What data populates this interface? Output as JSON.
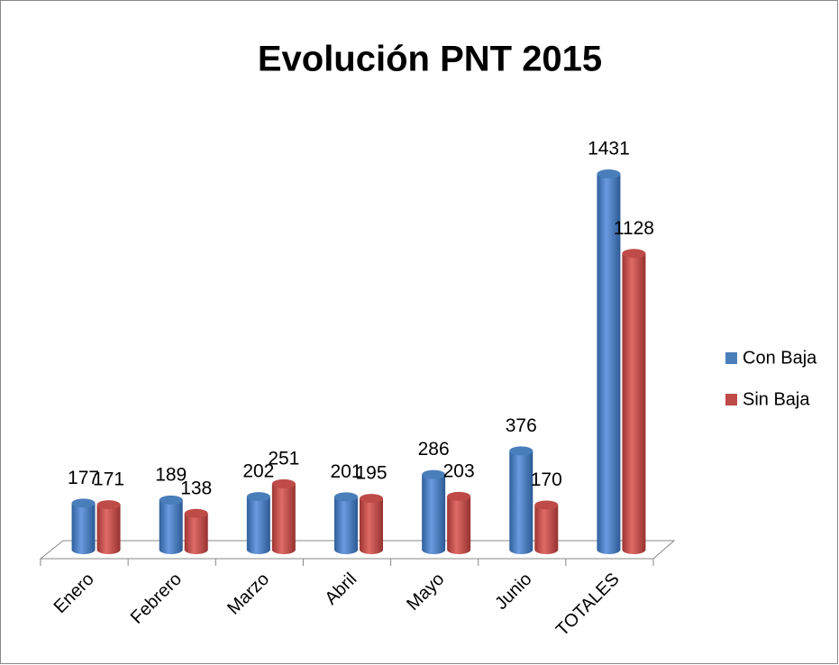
{
  "chart_data": {
    "type": "bar3d",
    "title": "Evolución PNT 2015",
    "categories": [
      "Enero",
      "Febrero",
      "Marzo",
      "Abril",
      "Mayo",
      "Junio",
      "TOTALES"
    ],
    "series": [
      {
        "name": "Con Baja",
        "color": "#4a7ebb",
        "values": [
          177,
          189,
          202,
          201,
          286,
          376,
          1431
        ]
      },
      {
        "name": "Sin Baja",
        "color": "#be4b48",
        "values": [
          171,
          138,
          251,
          195,
          203,
          170,
          1128
        ]
      }
    ],
    "legend": "right"
  }
}
